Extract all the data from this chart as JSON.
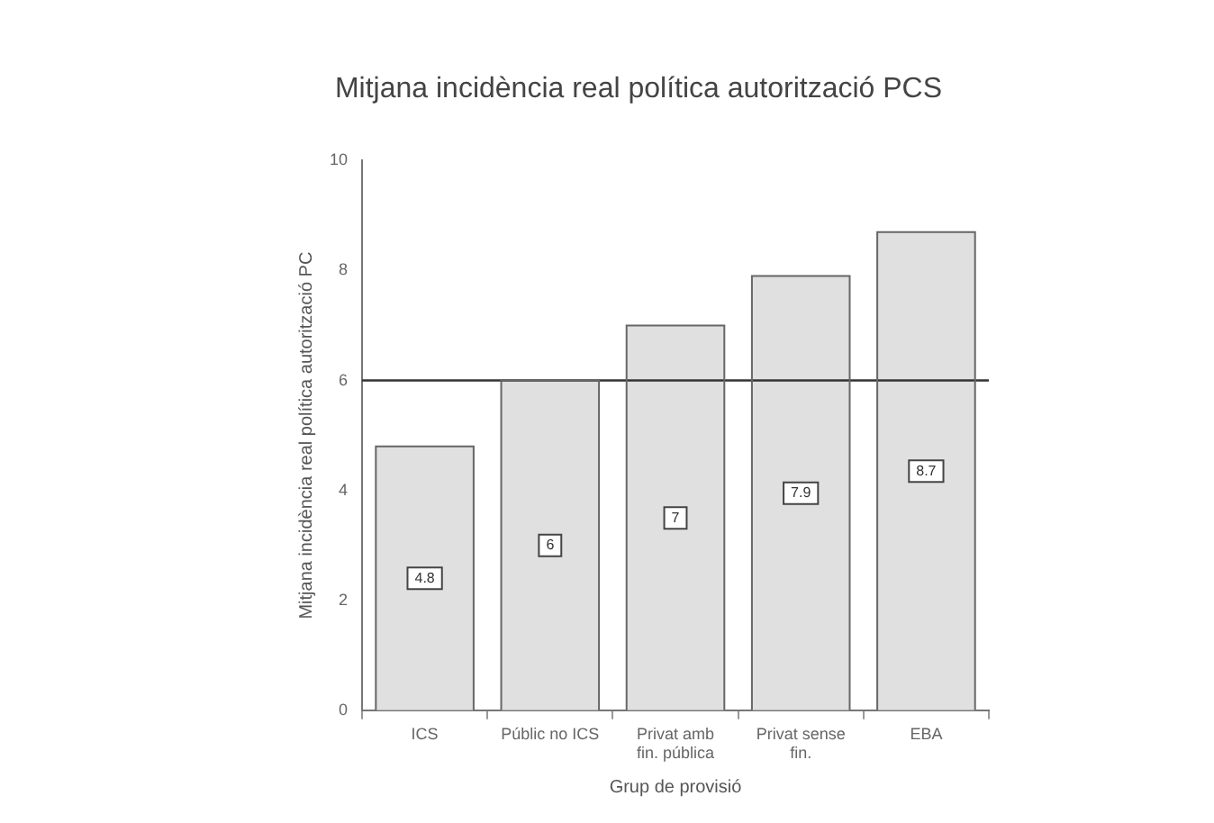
{
  "chart_data": {
    "type": "bar",
    "title": "Mitjana incidència real política autorització PCS",
    "xlabel": "Grup de provisió",
    "ylabel": "Mitjana incidència real política autorització PC",
    "categories": [
      "ICS",
      "Públic no ICS",
      "Privat amb fin. pública",
      "Privat sense fin.",
      "EBA"
    ],
    "values": [
      4.8,
      6.0,
      7.0,
      7.9,
      8.7
    ],
    "color": "#e0e0e0",
    "ylim": [
      0,
      10
    ],
    "yticks": [
      0,
      2,
      4,
      6,
      8,
      10
    ],
    "grid": false,
    "legend": false,
    "data_labels": true,
    "ref_lines": [
      {
        "axis": "y",
        "value": 6,
        "color": "#333333"
      }
    ]
  }
}
